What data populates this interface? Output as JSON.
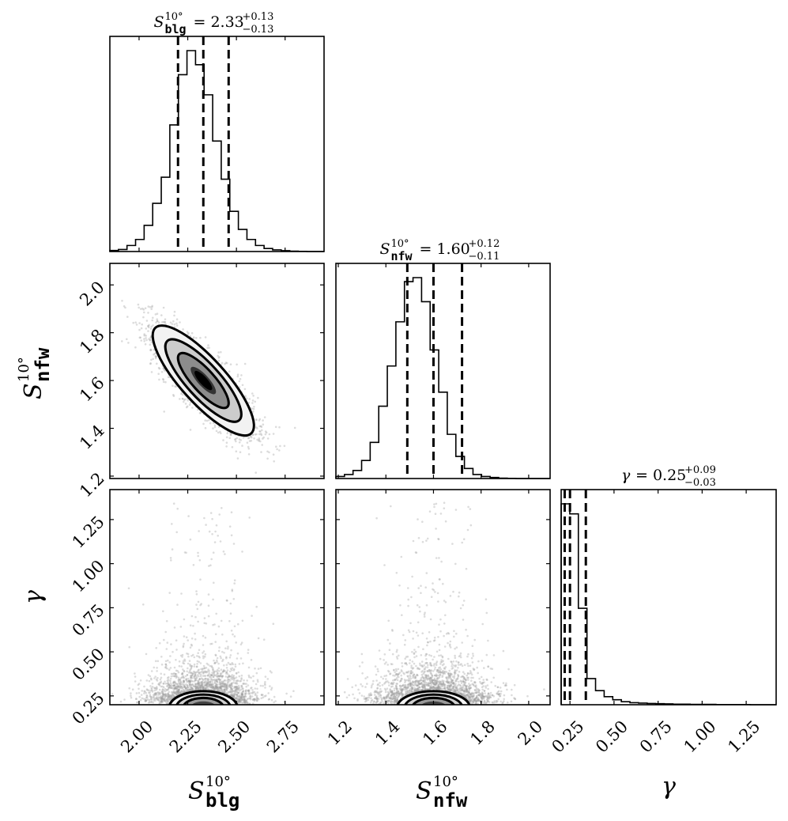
{
  "chart_data": {
    "type": "corner",
    "parameters": [
      {
        "key": "s_blg",
        "symbol": "S",
        "sup": "10°",
        "sub": "blg",
        "range": [
          1.85,
          2.95
        ],
        "ticks": [
          2.0,
          2.25,
          2.5,
          2.75
        ],
        "tick_labels": [
          "2.00",
          "2.25",
          "2.50",
          "2.75"
        ]
      },
      {
        "key": "s_nfw",
        "symbol": "S",
        "sup": "10°",
        "sub": "nfw",
        "range": [
          1.19,
          2.09
        ],
        "ticks": [
          1.2,
          1.4,
          1.6,
          1.8,
          2.0
        ],
        "tick_labels": [
          "1.2",
          "1.4",
          "1.6",
          "1.8",
          "2.0"
        ]
      },
      {
        "key": "gamma",
        "symbol": "γ",
        "sup": "",
        "sub": "",
        "range": [
          0.2,
          1.42
        ],
        "ticks": [
          0.25,
          0.5,
          0.75,
          1.0,
          1.25
        ],
        "tick_labels": [
          "0.25",
          "0.50",
          "0.75",
          "1.00",
          "1.25"
        ]
      }
    ],
    "titles": [
      {
        "lhs": "S",
        "sup": "10°",
        "sub": "blg",
        "eq": "= 2.33",
        "plus": "+0.13",
        "minus": "−0.13"
      },
      {
        "lhs": "S",
        "sup": "10°",
        "sub": "nfw",
        "eq": "= 1.60",
        "plus": "+0.12",
        "minus": "−0.11"
      },
      {
        "lhs": "γ",
        "sup": "",
        "sub": "",
        "eq": "= 0.25",
        "plus": "+0.09",
        "minus": "−0.03"
      }
    ],
    "histograms": [
      {
        "param": "s_blg",
        "bin_start": 1.85,
        "bin_width": 0.044,
        "counts": [
          0.005,
          0.01,
          0.03,
          0.06,
          0.13,
          0.24,
          0.37,
          0.63,
          0.88,
          1.0,
          0.93,
          0.78,
          0.55,
          0.36,
          0.2,
          0.11,
          0.06,
          0.03,
          0.015,
          0.008,
          0.004,
          0.002,
          0.001,
          0,
          0
        ],
        "quantiles": [
          2.2,
          2.33,
          2.46
        ]
      },
      {
        "param": "s_nfw",
        "bin_start": 1.19,
        "bin_width": 0.036,
        "counts": [
          0.01,
          0.02,
          0.04,
          0.09,
          0.18,
          0.36,
          0.56,
          0.78,
          0.98,
          1.0,
          0.88,
          0.64,
          0.43,
          0.22,
          0.11,
          0.05,
          0.02,
          0.01,
          0.005,
          0.002,
          0.001,
          0,
          0,
          0,
          0
        ],
        "quantiles": [
          1.49,
          1.6,
          1.72
        ]
      },
      {
        "param": "gamma",
        "bin_start": 0.2,
        "bin_width": 0.0488,
        "counts": [
          1.0,
          0.95,
          0.48,
          0.13,
          0.07,
          0.04,
          0.025,
          0.015,
          0.01,
          0.008,
          0.006,
          0.005,
          0.004,
          0.003,
          0.003,
          0.002,
          0.002,
          0.002,
          0.001,
          0.001,
          0.001,
          0.001,
          0,
          0,
          0
        ],
        "quantiles": [
          0.22,
          0.25,
          0.34
        ]
      }
    ],
    "joint": [
      {
        "x": "s_blg",
        "y": "s_nfw",
        "mean_x": 2.33,
        "mean_y": 1.6,
        "sd_x": 0.13,
        "sd_y": 0.115,
        "rho": -0.82,
        "gamma_like_y": false
      },
      {
        "x": "s_blg",
        "y": "gamma",
        "mean_x": 2.33,
        "mean_y": 0.25,
        "sd_x": 0.13,
        "sd_y": 0.07,
        "rho": 0.0,
        "gamma_like_y": true
      },
      {
        "x": "s_nfw",
        "y": "gamma",
        "mean_x": 1.6,
        "mean_y": 0.25,
        "sd_x": 0.115,
        "sd_y": 0.07,
        "rho": 0.0,
        "gamma_like_y": true
      }
    ],
    "contour_levels_sigma": [
      0.5,
      1.0,
      1.5,
      2.0
    ],
    "grid": false,
    "legend": "none"
  },
  "colors": {
    "line": "#000000",
    "scatter": "#9a9a9a",
    "background": "#ffffff"
  }
}
